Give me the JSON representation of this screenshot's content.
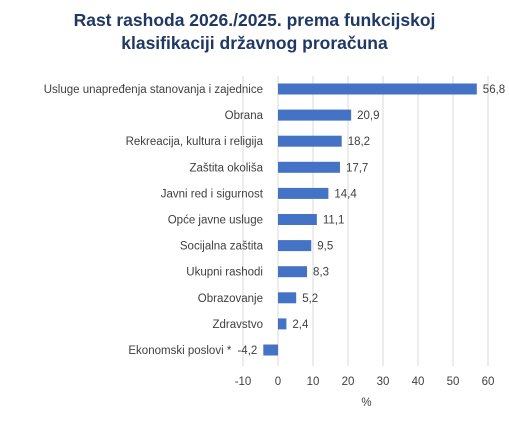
{
  "chart_data": {
    "type": "bar",
    "orientation": "horizontal",
    "title": [
      "Rast rashoda 2026./2025. prema funkcijskoj",
      "klasifikaciji državnog proračuna"
    ],
    "categories": [
      "Usluge unapređenja stanovanja i zajednice",
      "Obrana",
      "Rekreacija, kultura i religija",
      "Zaštita okoliša",
      "Javni red i sigurnost",
      "Opće javne usluge",
      "Socijalna zaštita",
      "Ukupni rashodi",
      "Obrazovanje",
      "Zdravstvo",
      "Ekonomski poslovi *"
    ],
    "values": [
      56.8,
      20.9,
      18.2,
      17.7,
      14.4,
      11.1,
      9.5,
      8.3,
      5.2,
      2.4,
      -4.2
    ],
    "value_labels": [
      "56,8",
      "20,9",
      "18,2",
      "17,7",
      "14,4",
      "11,1",
      "9,5",
      "8,3",
      "5,2",
      "2,4",
      "-4,2"
    ],
    "xlim": [
      -10,
      60
    ],
    "xticks": [
      -10,
      0,
      10,
      20,
      30,
      40,
      50,
      60
    ],
    "xtick_labels": [
      "-10",
      "0",
      "10",
      "20",
      "30",
      "40",
      "50",
      "60"
    ],
    "xlabel": "%",
    "grid": true,
    "bar_color": "#4472c4",
    "title_color": "#1f3864"
  }
}
